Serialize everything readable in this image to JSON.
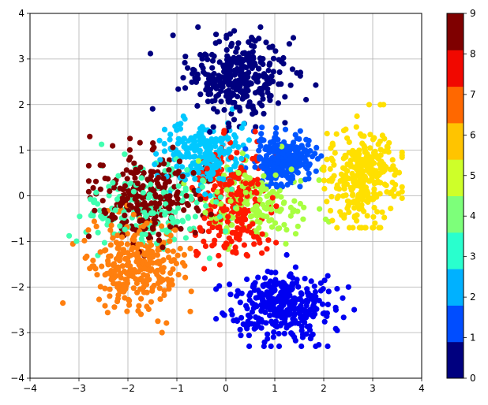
{
  "chart_data": {
    "type": "scatter",
    "title": "",
    "xlabel": "",
    "ylabel": "",
    "xlim": [
      -4,
      4
    ],
    "ylim": [
      -4,
      4
    ],
    "xticks": [
      "−4",
      "−3",
      "−2",
      "−1",
      "0",
      "1",
      "2",
      "3",
      "4"
    ],
    "yticks": [
      "−4",
      "−3",
      "−2",
      "−1",
      "0",
      "1",
      "2",
      "3",
      "4"
    ],
    "grid": true,
    "colormap": "jet",
    "colorbar": {
      "ticks": [
        "0",
        "1",
        "2",
        "3",
        "4",
        "5",
        "6",
        "7",
        "8",
        "9"
      ],
      "levels": 10,
      "colors": [
        "#00007f",
        "#0000f1",
        "#004dff",
        "#00b1ff",
        "#29ffce",
        "#7dff7a",
        "#ceff29",
        "#ffc400",
        "#ff6800",
        "#f10800",
        "#7f0000"
      ]
    },
    "series": [
      {
        "value": 0,
        "color": "#00007f",
        "center": [
          0.2,
          2.6
        ],
        "spread": [
          0.5,
          0.45
        ],
        "count": 320,
        "xrange": [
          -2.2,
          2.4
        ],
        "yrange": [
          1.4,
          3.7
        ]
      },
      {
        "value": 1,
        "color": "#0000f1",
        "center": [
          1.1,
          -2.4
        ],
        "spread": [
          0.55,
          0.35
        ],
        "count": 360,
        "xrange": [
          -0.2,
          2.9
        ],
        "yrange": [
          -3.3,
          -1.0
        ]
      },
      {
        "value": 2,
        "color": "#0055ff",
        "center": [
          1.2,
          0.8
        ],
        "spread": [
          0.3,
          0.25
        ],
        "count": 260,
        "xrange": [
          0.4,
          2.0
        ],
        "yrange": [
          0.2,
          1.5
        ]
      },
      {
        "value": 3,
        "color": "#00c8ff",
        "center": [
          -0.4,
          0.9
        ],
        "spread": [
          0.4,
          0.35
        ],
        "count": 220,
        "xrange": [
          -1.5,
          0.8
        ],
        "yrange": [
          -0.2,
          1.9
        ]
      },
      {
        "value": 4,
        "color": "#40ffb0",
        "center": [
          -1.5,
          -0.3
        ],
        "spread": [
          0.7,
          0.5
        ],
        "count": 200,
        "xrange": [
          -3.2,
          0.2
        ],
        "yrange": [
          -1.6,
          2.0
        ]
      },
      {
        "value": 5,
        "color": "#a8ff40",
        "center": [
          0.6,
          -0.2
        ],
        "spread": [
          0.55,
          0.45
        ],
        "count": 180,
        "xrange": [
          -1.5,
          2.2
        ],
        "yrange": [
          -1.3,
          2.1
        ]
      },
      {
        "value": 6,
        "color": "#ffe000",
        "center": [
          2.8,
          0.4
        ],
        "spread": [
          0.35,
          0.55
        ],
        "count": 300,
        "xrange": [
          2.0,
          3.6
        ],
        "yrange": [
          -0.7,
          2.0
        ]
      },
      {
        "value": 7,
        "color": "#ff7f0e",
        "center": [
          -1.8,
          -1.5
        ],
        "spread": [
          0.45,
          0.5
        ],
        "count": 300,
        "xrange": [
          -3.6,
          -0.4
        ],
        "yrange": [
          -3.0,
          0.3
        ]
      },
      {
        "value": 8,
        "color": "#ff1a00",
        "center": [
          0.1,
          -0.2
        ],
        "spread": [
          0.4,
          0.6
        ],
        "count": 240,
        "xrange": [
          -1.2,
          1.4
        ],
        "yrange": [
          -1.6,
          1.7
        ]
      },
      {
        "value": 9,
        "color": "#7f0000",
        "center": [
          -1.6,
          0.0
        ],
        "spread": [
          0.5,
          0.45
        ],
        "count": 260,
        "xrange": [
          -2.8,
          -0.3
        ],
        "yrange": [
          -1.8,
          1.3
        ]
      }
    ]
  }
}
